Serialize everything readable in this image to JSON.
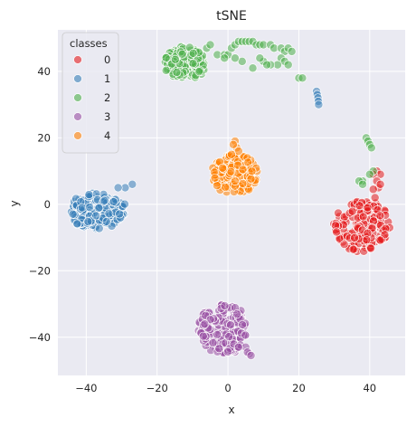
{
  "chart_data": {
    "type": "scatter",
    "title": "tSNE",
    "xlabel": "x",
    "ylabel": "y",
    "xlim": [
      -48,
      50
    ],
    "ylim": [
      -51.5,
      52.5
    ],
    "xticks": [
      -40,
      -20,
      0,
      20,
      40
    ],
    "yticks": [
      -40,
      -20,
      0,
      20,
      40
    ],
    "grid": true,
    "background": "#eaeaf2",
    "legend": {
      "title": "classes",
      "placement": "top-left"
    },
    "series": [
      {
        "name": "0",
        "color": "#e41a1c",
        "clusters": [
          {
            "cx": 38,
            "cy": -6.5,
            "rx": 8,
            "ry": 8,
            "n": 170
          }
        ],
        "points": [
          [
            42,
            10
          ],
          [
            43,
            9
          ],
          [
            41,
            9
          ],
          [
            42,
            7
          ],
          [
            42.5,
            5
          ],
          [
            41,
            4.5
          ],
          [
            43,
            6
          ],
          [
            41.5,
            2
          ]
        ]
      },
      {
        "name": "1",
        "color": "#377eb8",
        "clusters": [
          {
            "cx": -37,
            "cy": -2,
            "rx": 8,
            "ry": 5.5,
            "n": 170
          }
        ],
        "points": [
          [
            -27,
            6
          ],
          [
            -29,
            5
          ],
          [
            -31,
            5
          ],
          [
            25,
            34
          ],
          [
            25.2,
            33
          ],
          [
            25.4,
            32
          ],
          [
            25.5,
            31
          ],
          [
            25.6,
            30
          ]
        ]
      },
      {
        "name": "2",
        "color": "#4daf4a",
        "clusters": [
          {
            "cx": -12,
            "cy": 42.5,
            "rx": 6,
            "ry": 5,
            "n": 150
          }
        ],
        "points": [
          [
            -6,
            47
          ],
          [
            -5,
            48
          ],
          [
            -3,
            45
          ],
          [
            -1,
            45
          ],
          [
            0,
            45
          ],
          [
            1,
            47
          ],
          [
            2,
            48
          ],
          [
            3,
            49
          ],
          [
            4,
            49
          ],
          [
            5,
            49
          ],
          [
            6,
            49
          ],
          [
            7,
            49
          ],
          [
            8,
            48
          ],
          [
            9,
            48
          ],
          [
            10,
            48
          ],
          [
            12,
            48
          ],
          [
            13,
            47
          ],
          [
            15,
            47
          ],
          [
            16,
            46
          ],
          [
            17,
            47
          ],
          [
            18,
            46
          ],
          [
            15,
            44
          ],
          [
            16,
            43
          ],
          [
            17,
            42
          ],
          [
            14,
            42
          ],
          [
            12,
            42
          ],
          [
            10,
            43
          ],
          [
            11,
            42
          ],
          [
            9,
            44
          ],
          [
            7,
            41
          ],
          [
            4,
            43
          ],
          [
            2,
            44
          ],
          [
            -1,
            44
          ],
          [
            20,
            38
          ],
          [
            21,
            38
          ],
          [
            39,
            20
          ],
          [
            39.5,
            19
          ],
          [
            40,
            18
          ],
          [
            40.5,
            17
          ],
          [
            38,
            7
          ],
          [
            37,
            7
          ],
          [
            38,
            6
          ],
          [
            41,
            10
          ],
          [
            40,
            9
          ]
        ]
      },
      {
        "name": "3",
        "color": "#984ea3",
        "clusters": [
          {
            "cx": -1.5,
            "cy": -37.5,
            "rx": 7,
            "ry": 7.5,
            "n": 170
          }
        ],
        "points": [
          [
            5,
            -43
          ],
          [
            6,
            -45
          ],
          [
            5.5,
            -44.5
          ],
          [
            3,
            -43
          ],
          [
            6.5,
            -45.5
          ]
        ]
      },
      {
        "name": "4",
        "color": "#ff7f00",
        "clusters": [
          {
            "cx": 2,
            "cy": 9,
            "rx": 6.5,
            "ry": 6,
            "n": 150
          }
        ],
        "points": [
          [
            2,
            19
          ],
          [
            2.5,
            17
          ],
          [
            1.5,
            18
          ],
          [
            3,
            16
          ],
          [
            1,
            15
          ],
          [
            1.5,
            6
          ],
          [
            2,
            5.5
          ],
          [
            2,
            7
          ]
        ]
      }
    ]
  }
}
